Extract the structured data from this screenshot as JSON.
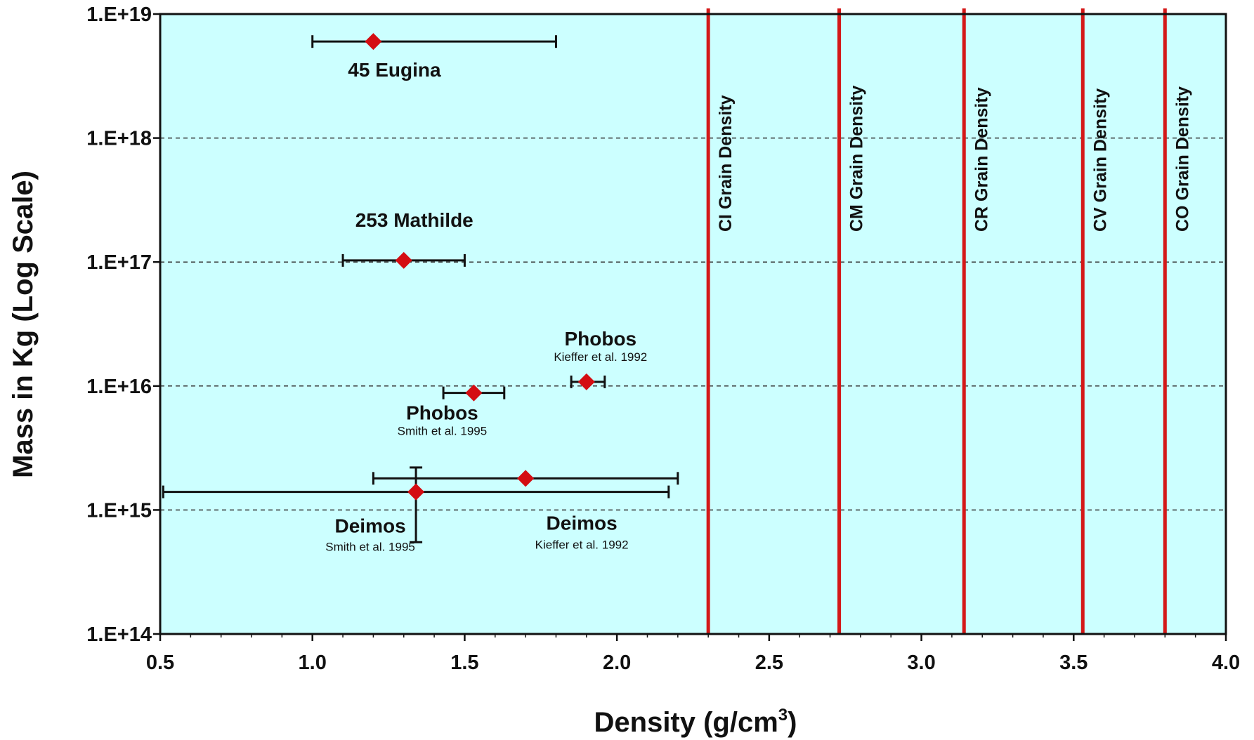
{
  "chart_data": {
    "type": "scatter",
    "xlabel": "Density (g/cm",
    "xlabel_sup": "3",
    "xlabel_close": ")",
    "ylabel": "Mass in Kg (Log Scale)",
    "xlim": [
      0.5,
      4.0
    ],
    "ylim": [
      100000000000000.0,
      1e+19
    ],
    "yscale": "log",
    "grid": "horizontal dashed",
    "x_ticks": [
      "0.5",
      "1.0",
      "1.5",
      "2.0",
      "2.5",
      "3.0",
      "3.5",
      "4.0"
    ],
    "y_ticks": [
      "1.E+14",
      "1.E+15",
      "1.E+16",
      "1.E+17",
      "1.E+18",
      "1.E+19"
    ],
    "colors": {
      "plot_background": "#ccffff",
      "marker": "#d40d12",
      "reference_line": "#d41818",
      "error_bar": "#111111",
      "grid": "#333333"
    },
    "points": [
      {
        "name": "45 Eugina",
        "source": "",
        "x": 1.2,
        "y": 6e+18,
        "xerr": [
          1.0,
          1.8
        ],
        "yerr": null
      },
      {
        "name": "253 Mathilde",
        "source": "",
        "x": 1.3,
        "y": 1.03e+17,
        "xerr": [
          1.1,
          1.5
        ],
        "yerr": null
      },
      {
        "name": "Phobos",
        "source": "Kieffer et al. 1992",
        "x": 1.9,
        "y": 1.08e+16,
        "xerr": [
          1.85,
          1.96
        ],
        "yerr": null
      },
      {
        "name": "Phobos",
        "source": "Smith et al. 1995",
        "x": 1.53,
        "y": 8800000000000000.0,
        "xerr": [
          1.43,
          1.63
        ],
        "yerr": null
      },
      {
        "name": "Deimos",
        "source": "Kieffer et al. 1992",
        "x": 1.7,
        "y": 1800000000000000.0,
        "xerr": [
          1.2,
          2.2
        ],
        "yerr": null
      },
      {
        "name": "Deimos",
        "source": "Smith et al. 1995",
        "x": 1.34,
        "y": 1400000000000000.0,
        "xerr": [
          0.51,
          2.17
        ],
        "yerr": [
          550000000000000.0,
          2200000000000000.0
        ]
      }
    ],
    "reference_lines": [
      {
        "label": "CI Grain Density",
        "x": 2.3
      },
      {
        "label": "CM Grain Density",
        "x": 2.73
      },
      {
        "label": "CR Grain Density",
        "x": 3.14
      },
      {
        "label": "CV Grain Density",
        "x": 3.53
      },
      {
        "label": "CO Grain Density",
        "x": 3.8
      }
    ]
  }
}
